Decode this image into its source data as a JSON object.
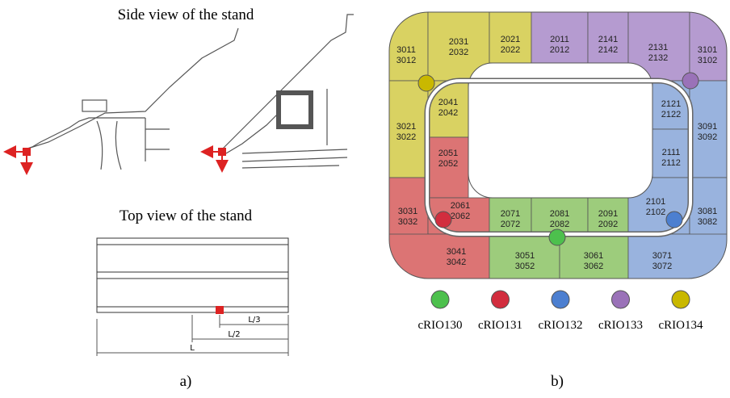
{
  "panel_a": {
    "side_title": "Side view of the stand",
    "top_title": "Top view of the stand",
    "dims": [
      "L/3",
      "L/2",
      "L"
    ],
    "caption": "a)"
  },
  "panel_b": {
    "sectors": [
      [
        "3011",
        "3012"
      ],
      [
        "2031",
        "2032"
      ],
      [
        "2021",
        "2022"
      ],
      [
        "2011",
        "2012"
      ],
      [
        "2141",
        "2142"
      ],
      [
        "2131",
        "2132"
      ],
      [
        "3101",
        "3102"
      ],
      [
        "3021",
        "3022"
      ],
      [
        "2041",
        "2042"
      ],
      [
        "2051",
        "2052"
      ],
      [
        "2121",
        "2122"
      ],
      [
        "2111",
        "2112"
      ],
      [
        "3091",
        "3092"
      ],
      [
        "3031",
        "3032"
      ],
      [
        "2061",
        "2062"
      ],
      [
        "2071",
        "2072"
      ],
      [
        "2081",
        "2082"
      ],
      [
        "2091",
        "2092"
      ],
      [
        "2101",
        "2102"
      ],
      [
        "3081",
        "3082"
      ],
      [
        "3041",
        "3042"
      ],
      [
        "3051",
        "3052"
      ],
      [
        "3061",
        "3062"
      ],
      [
        "3071",
        "3072"
      ]
    ],
    "legend": [
      "cRIO130",
      "cRIO131",
      "cRIO132",
      "cRIO133",
      "cRIO134"
    ],
    "caption": "b)"
  }
}
